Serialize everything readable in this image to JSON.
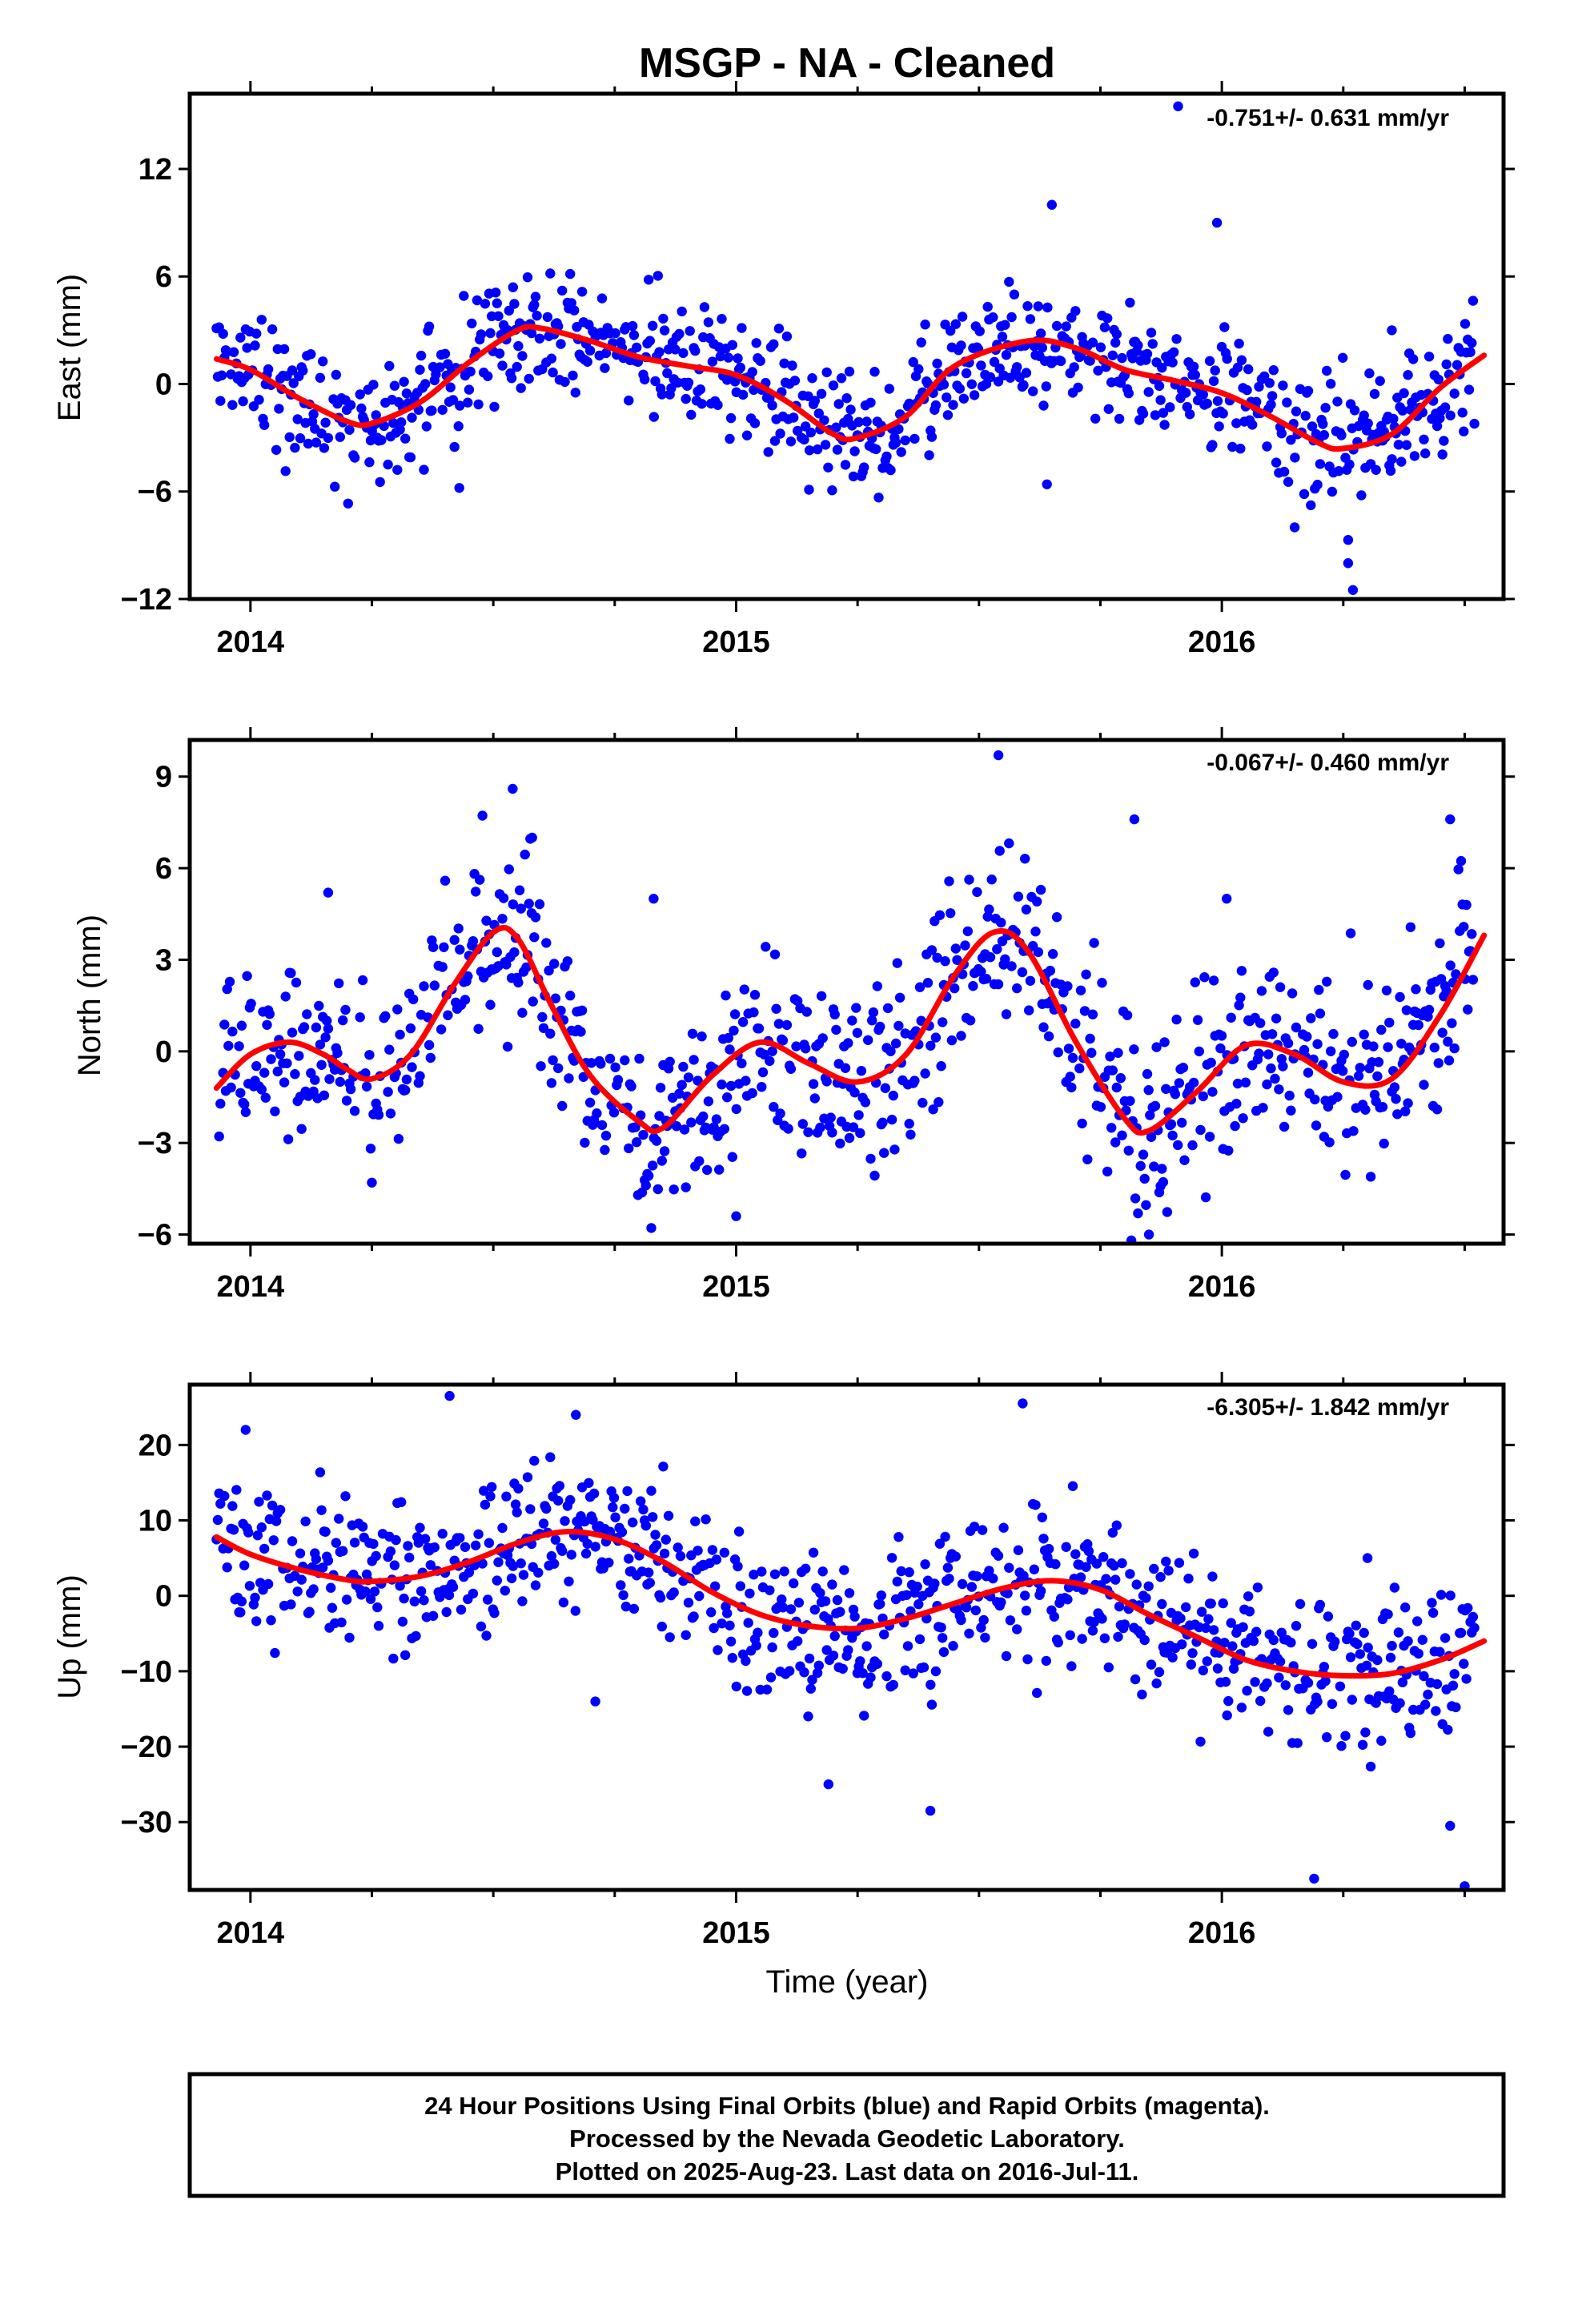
{
  "title": "MSGP  - NA - Cleaned",
  "colors": {
    "points": "#0000ff",
    "fit": "#ff0000",
    "frame": "#000000"
  },
  "x_axis": {
    "label": "Time (year)",
    "range": [
      2013.875,
      2016.58
    ],
    "major_ticks": [
      2014,
      2015,
      2016
    ],
    "major_labels": [
      "2014",
      "2015",
      "2016"
    ],
    "minor_tick_interval": 0.25
  },
  "footer": {
    "lines": [
      "24 Hour Positions Using Final Orbits (blue) and Rapid Orbits (magenta).",
      "Processed by the Nevada Geodetic Laboratory.",
      "Plotted on 2025-Aug-23. Last data on 2016-Jul-11."
    ]
  },
  "chart_data": [
    {
      "type": "scatter",
      "name": "east",
      "ylabel": "East (mm)",
      "rate": "-0.751+/- 0.631 mm/yr",
      "ylim": [
        -12,
        16.2
      ],
      "yticks": [
        -12,
        -6,
        0,
        6,
        12
      ],
      "ytick_labels": [
        "−12",
        "−6",
        "0",
        "6",
        "12"
      ],
      "fit_x": [
        2013.93,
        2014.0,
        2014.1,
        2014.2,
        2014.25,
        2014.35,
        2014.45,
        2014.55,
        2014.6,
        2014.7,
        2014.8,
        2014.9,
        2015.0,
        2015.1,
        2015.2,
        2015.25,
        2015.35,
        2015.45,
        2015.6,
        2015.7,
        2015.8,
        2015.9,
        2016.0,
        2016.1,
        2016.2,
        2016.25,
        2016.35,
        2016.45,
        2016.54
      ],
      "fit_y": [
        1.4,
        0.8,
        -0.8,
        -2.1,
        -2.2,
        -1.0,
        1.2,
        3.0,
        3.1,
        2.4,
        1.5,
        1.0,
        0.5,
        -0.9,
        -2.8,
        -3.0,
        -1.8,
        1.0,
        2.4,
        2.0,
        0.8,
        0.2,
        -0.5,
        -1.8,
        -3.3,
        -3.6,
        -2.8,
        -0.2,
        1.6
      ],
      "residual_sd": 1.7,
      "seed": 11,
      "outliers": [
        [
          2015.65,
          10.0
        ],
        [
          2015.99,
          9.0
        ],
        [
          2015.91,
          15.5
        ],
        [
          2016.27,
          -11.5
        ],
        [
          2016.26,
          -10.0
        ],
        [
          2016.26,
          -8.7
        ],
        [
          2014.43,
          -5.8
        ],
        [
          2016.35,
          3.0
        ],
        [
          2015.15,
          -5.9
        ],
        [
          2015.64,
          -5.6
        ],
        [
          2016.15,
          -8.0
        ]
      ]
    },
    {
      "type": "scatter",
      "name": "north",
      "ylabel": "North (mm)",
      "rate": "-0.067+/- 0.460 mm/yr",
      "ylim": [
        -6.3,
        10.2
      ],
      "yticks": [
        -6,
        -3,
        0,
        3,
        6,
        9
      ],
      "ytick_labels": [
        "−6",
        "−3",
        "0",
        "3",
        "6",
        "9"
      ],
      "fit_x": [
        2013.93,
        2014.0,
        2014.08,
        2014.15,
        2014.2,
        2014.25,
        2014.33,
        2014.42,
        2014.5,
        2014.55,
        2014.62,
        2014.7,
        2014.8,
        2014.85,
        2014.95,
        2015.05,
        2015.15,
        2015.25,
        2015.35,
        2015.45,
        2015.53,
        2015.6,
        2015.7,
        2015.8,
        2015.85,
        2015.95,
        2016.05,
        2016.15,
        2016.25,
        2016.35,
        2016.45,
        2016.54
      ],
      "fit_y": [
        -1.2,
        -0.1,
        0.3,
        -0.1,
        -0.6,
        -0.9,
        -0.1,
        2.2,
        3.9,
        3.7,
        1.5,
        -0.8,
        -2.3,
        -2.5,
        -0.8,
        0.3,
        -0.4,
        -1.0,
        -0.1,
        2.5,
        3.9,
        3.3,
        0.3,
        -2.2,
        -2.6,
        -1.3,
        0.2,
        -0.1,
        -1.0,
        -0.9,
        1.2,
        3.8
      ],
      "residual_sd": 1.5,
      "seed": 23,
      "outliers": [
        [
          2015.54,
          9.7
        ],
        [
          2014.54,
          8.6
        ],
        [
          2015.82,
          7.6
        ],
        [
          2016.47,
          7.6
        ],
        [
          2014.58,
          7.0
        ],
        [
          2014.16,
          5.2
        ],
        [
          2014.83,
          5.0
        ],
        [
          2015.85,
          -6.0
        ],
        [
          2015.0,
          -5.4
        ],
        [
          2016.01,
          5.0
        ],
        [
          2014.25,
          -4.3
        ]
      ]
    },
    {
      "type": "scatter",
      "name": "up",
      "ylabel": "Up (mm)",
      "rate": "-6.305+/- 1.842 mm/yr",
      "ylim": [
        -39,
        28
      ],
      "yticks": [
        -30,
        -20,
        -10,
        0,
        10,
        20
      ],
      "ytick_labels": [
        "−30",
        "−20",
        "−10",
        "0",
        "10",
        "20"
      ],
      "fit_x": [
        2013.93,
        2014.0,
        2014.1,
        2014.2,
        2014.25,
        2014.35,
        2014.45,
        2014.55,
        2014.65,
        2014.75,
        2014.85,
        2014.95,
        2015.05,
        2015.15,
        2015.25,
        2015.35,
        2015.45,
        2015.55,
        2015.65,
        2015.75,
        2015.85,
        2015.95,
        2016.05,
        2016.15,
        2016.25,
        2016.35,
        2016.45,
        2016.54
      ],
      "fit_y": [
        7.8,
        5.5,
        3.5,
        2.1,
        1.9,
        2.6,
        4.5,
        7.0,
        8.5,
        7.5,
        4.5,
        0.5,
        -2.5,
        -4.0,
        -4.3,
        -3.0,
        -1.0,
        1.0,
        2.0,
        0.8,
        -2.5,
        -5.5,
        -8.5,
        -10.0,
        -10.6,
        -10.3,
        -8.5,
        -6.0
      ],
      "residual_sd": 5.0,
      "seed": 37,
      "outliers": [
        [
          2014.41,
          26.5
        ],
        [
          2015.59,
          25.5
        ],
        [
          2014.67,
          24.0
        ],
        [
          2013.99,
          22.0
        ],
        [
          2016.19,
          -37.5
        ],
        [
          2016.5,
          -38.5
        ],
        [
          2016.47,
          -30.5
        ],
        [
          2015.4,
          -28.5
        ],
        [
          2015.19,
          -25.0
        ],
        [
          2014.71,
          -14.0
        ],
        [
          2016.3,
          5.0
        ]
      ]
    }
  ]
}
